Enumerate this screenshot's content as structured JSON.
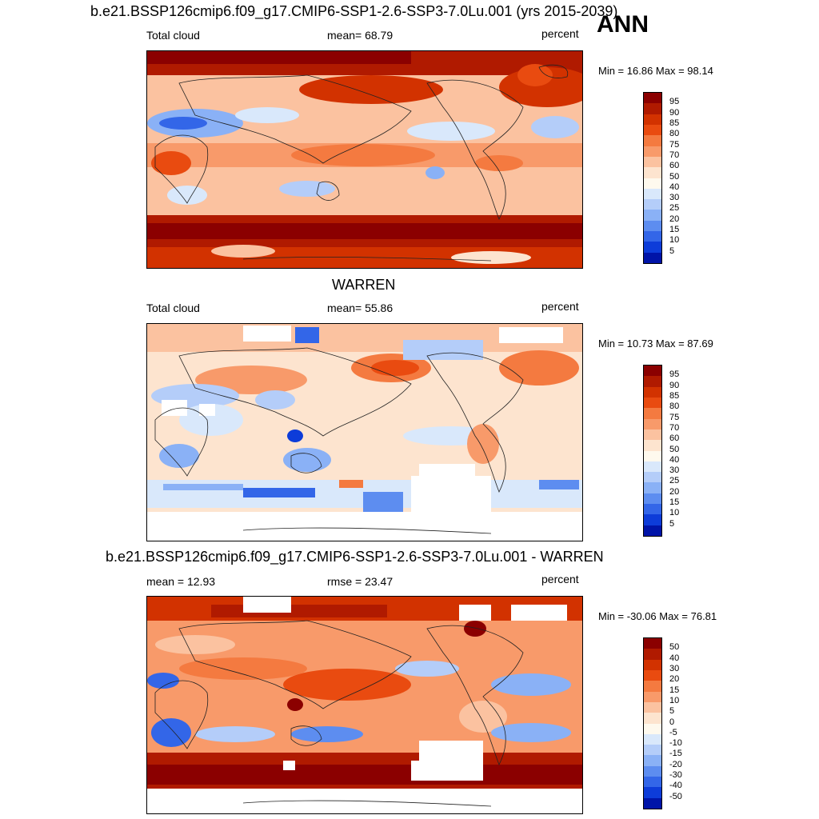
{
  "panel_label": "ANN",
  "panels": [
    {
      "title": "b.e21.BSSP126cmip6.f09_g17.CMIP6-SSP1-2.6-SSP3-7.0Lu.001 (yrs 2015-2039)",
      "left_label": "Total cloud",
      "center_label": "mean=  68.79",
      "right_label": "percent",
      "minmax": "Min =  16.86 Max =  98.14",
      "colorbar": {
        "ticks": [
          "95",
          "90",
          "85",
          "80",
          "75",
          "70",
          "60",
          "50",
          "40",
          "30",
          "25",
          "20",
          "15",
          "10",
          "5"
        ],
        "colors": [
          "#8b0000",
          "#b01a00",
          "#d23200",
          "#e94b10",
          "#f47a40",
          "#f89a6a",
          "#fbc2a0",
          "#fde4cf",
          "#fef9ee",
          "#d9e8fb",
          "#b4cdf9",
          "#8ab1f6",
          "#5d8df0",
          "#3366e8",
          "#0d3cd9",
          "#0014a8"
        ]
      }
    },
    {
      "title": "WARREN",
      "left_label": "Total cloud",
      "center_label": "mean=  55.86",
      "right_label": "percent",
      "minmax": "Min =  10.73 Max =  87.69",
      "colorbar": {
        "ticks": [
          "95",
          "90",
          "85",
          "80",
          "75",
          "70",
          "60",
          "50",
          "40",
          "30",
          "25",
          "20",
          "15",
          "10",
          "5"
        ],
        "colors": [
          "#8b0000",
          "#b01a00",
          "#d23200",
          "#e94b10",
          "#f47a40",
          "#f89a6a",
          "#fbc2a0",
          "#fde4cf",
          "#fef9ee",
          "#d9e8fb",
          "#b4cdf9",
          "#8ab1f6",
          "#5d8df0",
          "#3366e8",
          "#0d3cd9",
          "#0014a8"
        ]
      }
    },
    {
      "title": "b.e21.BSSP126cmip6.f09_g17.CMIP6-SSP1-2.6-SSP3-7.0Lu.001 - WARREN",
      "left_label": "mean =  12.93",
      "center_label": "rmse =  23.47",
      "right_label": "percent",
      "minmax": "Min = -30.06 Max =  76.81",
      "colorbar": {
        "ticks": [
          "50",
          "40",
          "30",
          "20",
          "15",
          "10",
          "5",
          "0",
          "-5",
          "-10",
          "-15",
          "-20",
          "-30",
          "-40",
          "-50"
        ],
        "colors": [
          "#8b0000",
          "#b01a00",
          "#d23200",
          "#e94b10",
          "#f47a40",
          "#f89a6a",
          "#fbc2a0",
          "#fde4cf",
          "#fef9ee",
          "#d9e8fb",
          "#b4cdf9",
          "#8ab1f6",
          "#5d8df0",
          "#3366e8",
          "#0d3cd9",
          "#0014a8"
        ]
      }
    }
  ],
  "chart_data": [
    {
      "type": "heatmap",
      "title": "b.e21.BSSP126cmip6.f09_g17.CMIP6-SSP1-2.6-SSP3-7.0Lu.001 (yrs 2015-2039)",
      "field": "Total cloud",
      "units": "percent",
      "mean": 68.79,
      "min": 16.86,
      "max": 98.14,
      "colorbar_levels": [
        5,
        10,
        15,
        20,
        25,
        30,
        40,
        50,
        60,
        70,
        75,
        80,
        85,
        90,
        95
      ]
    },
    {
      "type": "heatmap",
      "title": "WARREN",
      "field": "Total cloud",
      "units": "percent",
      "mean": 55.86,
      "min": 10.73,
      "max": 87.69,
      "colorbar_levels": [
        5,
        10,
        15,
        20,
        25,
        30,
        40,
        50,
        60,
        70,
        75,
        80,
        85,
        90,
        95
      ]
    },
    {
      "type": "heatmap",
      "title": "b.e21.BSSP126cmip6.f09_g17.CMIP6-SSP1-2.6-SSP3-7.0Lu.001 - WARREN",
      "units": "percent",
      "mean": 12.93,
      "rmse": 23.47,
      "min": -30.06,
      "max": 76.81,
      "colorbar_levels": [
        -50,
        -40,
        -30,
        -20,
        -15,
        -10,
        -5,
        0,
        5,
        10,
        15,
        20,
        30,
        40,
        50
      ]
    }
  ]
}
